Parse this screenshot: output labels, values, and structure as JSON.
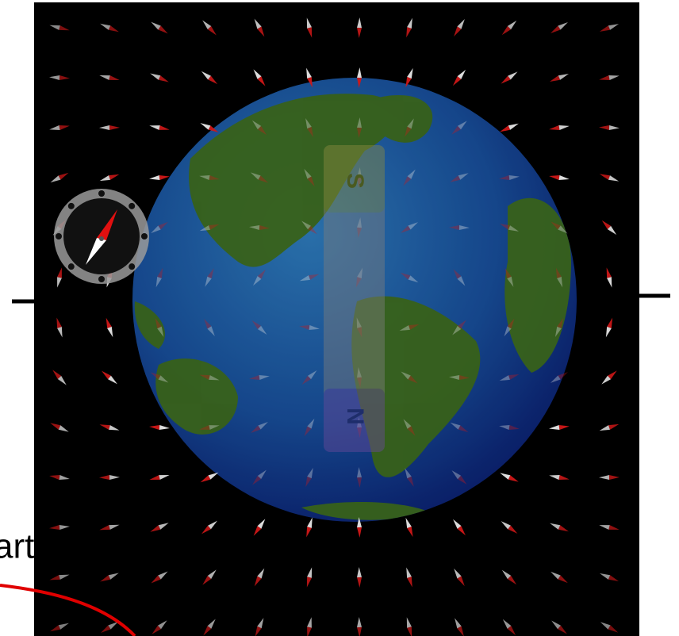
{
  "caption_fragment": "art",
  "magnet": {
    "south_label": "S",
    "north_label": "N"
  }
}
